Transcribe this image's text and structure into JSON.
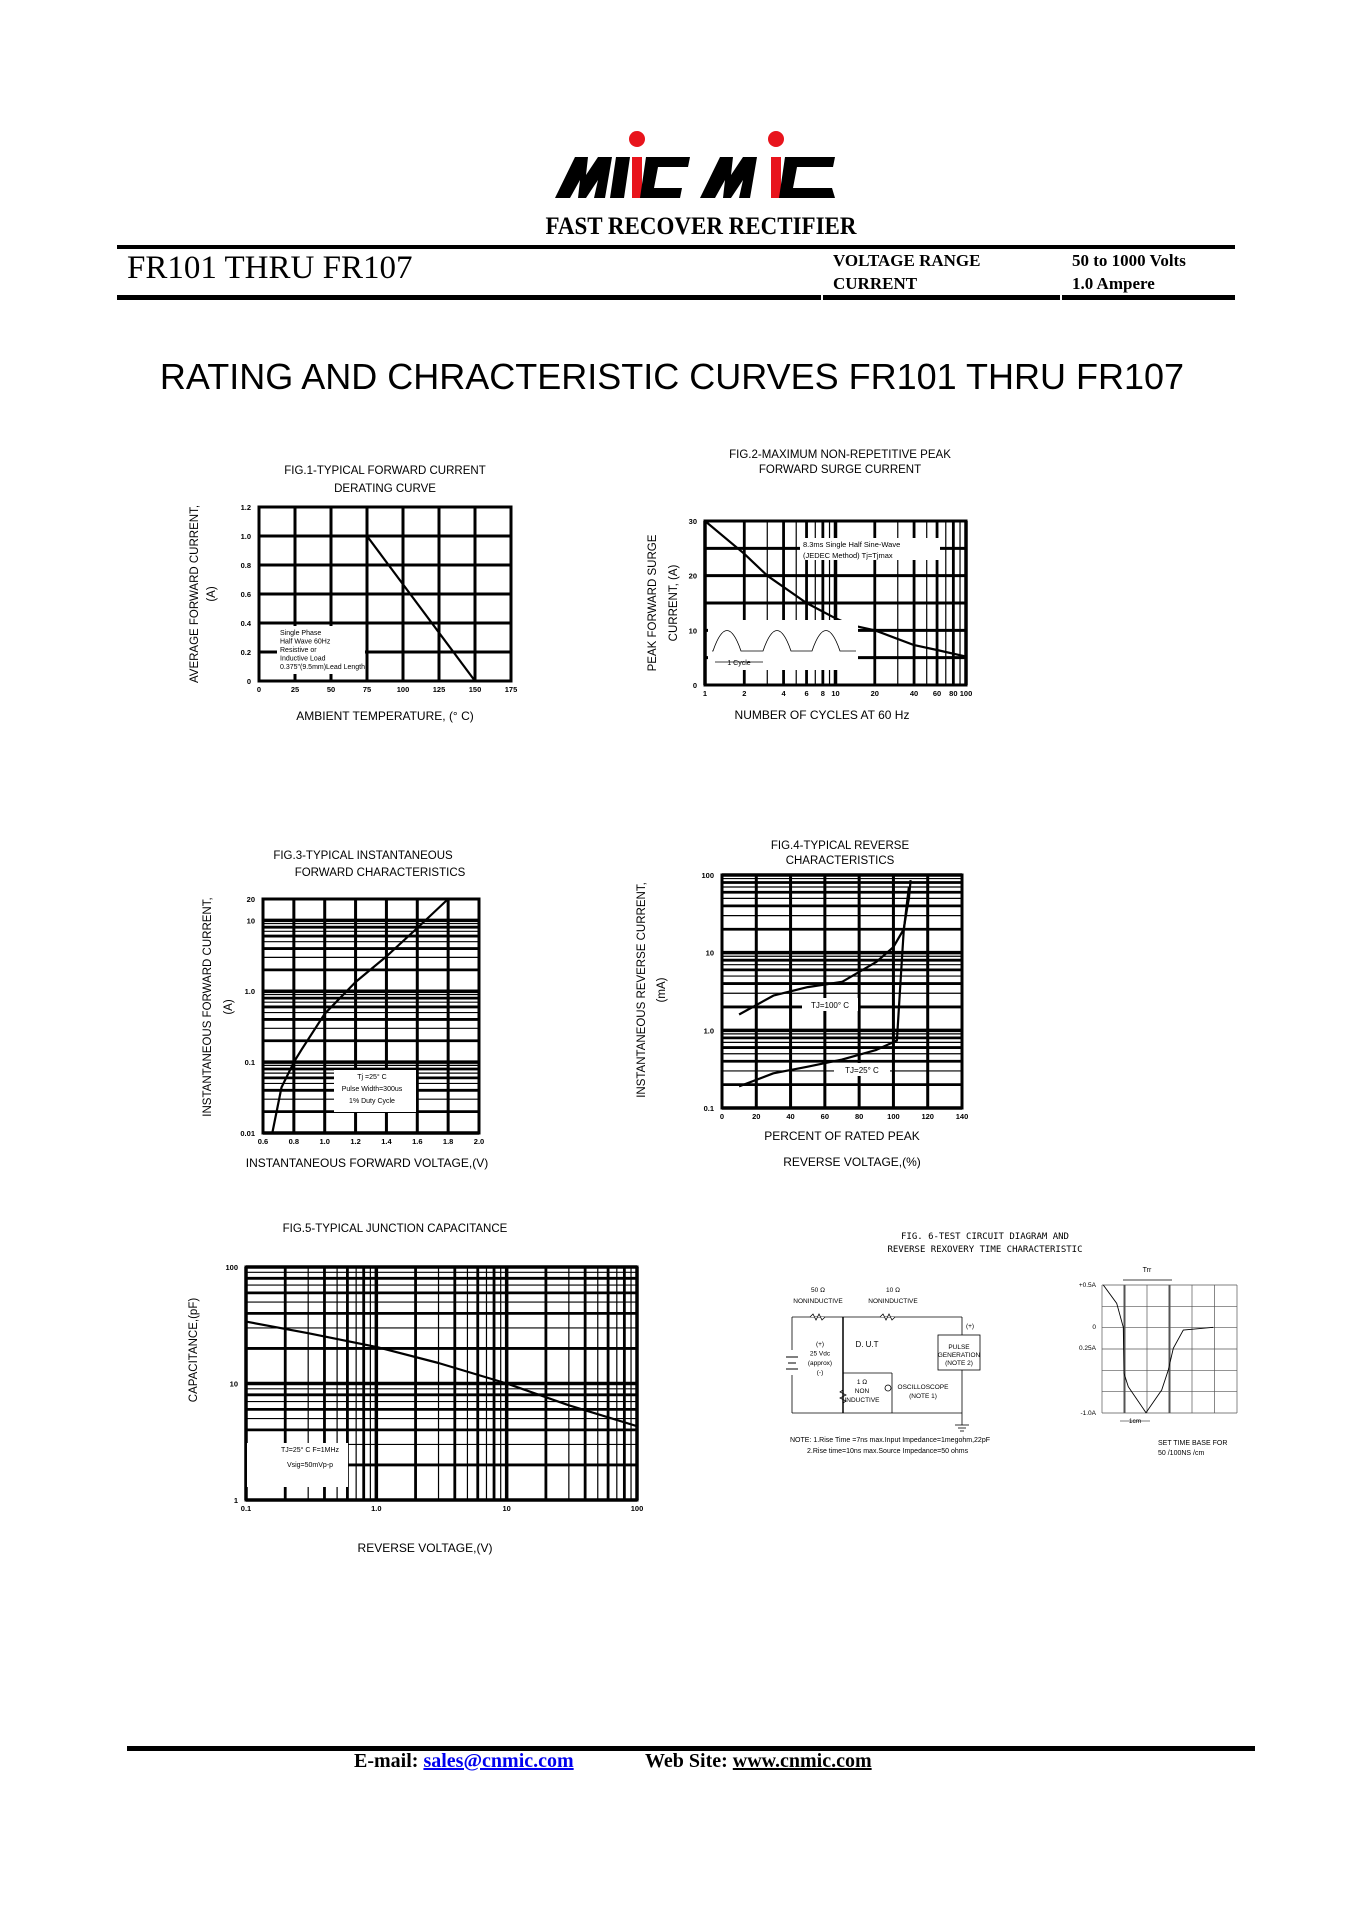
{
  "logo": {
    "text": "MIC MIC",
    "dot_color": "#e8141c"
  },
  "header": {
    "subtitle": "FAST RECOVER RECTIFIER",
    "part_range": "FR101 THRU FR107",
    "specs": [
      {
        "label": "VOLTAGE RANGE",
        "value": "50 to 1000 Volts"
      },
      {
        "label": "CURRENT",
        "value": "1.0 Ampere"
      }
    ]
  },
  "heading": "RATING AND CHRACTERISTIC CURVES FR101 THRU FR107",
  "chart_data": [
    {
      "type": "line",
      "title": [
        "FIG.1-TYPICAL FORWARD CURRENT",
        "DERATING CURVE"
      ],
      "xlabel": [
        "AMBIENT TEMPERATURE, (° C)"
      ],
      "ylabel": [
        "AVERAGE FORWARD CURRENT,",
        "(A)"
      ],
      "xscale": "linear",
      "yscale": "linear",
      "xlim": [
        0,
        175
      ],
      "ylim": [
        0,
        1.2
      ],
      "xtick_values": [
        0,
        25,
        50,
        75,
        100,
        125,
        150,
        175
      ],
      "xtick_labels": [
        "0",
        "25",
        "50",
        "75",
        "100",
        "125",
        "150",
        "175"
      ],
      "ytick_values": [
        0,
        0.2,
        0.4,
        0.6,
        0.8,
        1.0,
        1.2
      ],
      "ytick_labels": [
        "0",
        "0.2",
        "0.4",
        "0.6",
        "0.8",
        "1.0",
        "1.2"
      ],
      "grid": true,
      "series": [
        {
          "points": [
            [
              75,
              1.0
            ],
            [
              150,
              0
            ]
          ]
        }
      ],
      "annotation": [
        "Single Phase",
        "Half Wave 60Hz",
        "Resistive or",
        "Inductive Load",
        "0.375\"(9.5mm)Lead Length"
      ]
    },
    {
      "type": "line",
      "title": [
        "FIG.2-MAXIMUM NON-REPETITIVE PEAK",
        "FORWARD SURGE CURRENT"
      ],
      "xlabel": [
        "NUMBER OF CYCLES AT 60 Hz"
      ],
      "ylabel": [
        "PEAK FORWARD SURGE",
        "CURRENT, (A)"
      ],
      "xscale": "log",
      "yscale": "linear",
      "xlim": [
        1,
        100
      ],
      "ylim": [
        0,
        30
      ],
      "xtick_values": [
        1,
        2,
        4,
        6,
        8,
        10,
        20,
        40,
        60,
        80,
        100
      ],
      "xtick_labels": [
        "1",
        "2",
        "4",
        "6",
        "8",
        "10",
        "20",
        "40",
        "60",
        "80",
        "100"
      ],
      "ytick_values": [
        0,
        10,
        20,
        30
      ],
      "ytick_labels": [
        "0",
        "10",
        "20",
        "30"
      ],
      "grid": true,
      "series": [
        {
          "points": [
            [
              1,
              30
            ],
            [
              2,
              24
            ],
            [
              3,
              20
            ],
            [
              6,
              15
            ],
            [
              10,
              12.2
            ],
            [
              13,
              11
            ],
            [
              20,
              10
            ],
            [
              40,
              7.3
            ],
            [
              60,
              6.4
            ],
            [
              100,
              5.2
            ]
          ]
        }
      ],
      "annotation": [
        "8.3ms Single Half Sine-Wave",
        "(JEDEC Method)  Tj=Tjmax"
      ],
      "inset_label": "1 Cycle"
    },
    {
      "type": "line",
      "title": [
        "FIG.3-TYPICAL INSTANTANEOUS",
        "FORWARD CHARACTERISTICS"
      ],
      "xlabel": [
        "INSTANTANEOUS FORWARD VOLTAGE,(V)"
      ],
      "ylabel": [
        "INSTANTANEOUS FORWARD CURRENT,",
        "(A)"
      ],
      "xscale": "linear",
      "yscale": "log",
      "xlim": [
        0.6,
        2.0
      ],
      "ylim": [
        0.01,
        20
      ],
      "xtick_values": [
        0.6,
        0.8,
        1.0,
        1.2,
        1.4,
        1.6,
        1.8,
        2.0
      ],
      "xtick_labels": [
        "0.6",
        "0.8",
        "1.0",
        "1.2",
        "1.4",
        "1.6",
        "1.8",
        "2.0"
      ],
      "ytick_values": [
        0.01,
        0.1,
        1.0,
        10,
        20
      ],
      "ytick_labels": [
        "0.01",
        "0.1",
        "1.0",
        "10",
        "20"
      ],
      "grid": true,
      "series": [
        {
          "points": [
            [
              0.66,
              0.01
            ],
            [
              0.72,
              0.044
            ],
            [
              0.8,
              0.1
            ],
            [
              0.85,
              0.15
            ],
            [
              1.0,
              0.48
            ],
            [
              1.2,
              1.35
            ],
            [
              1.4,
              3.1
            ],
            [
              1.6,
              7.8
            ],
            [
              1.8,
              20
            ]
          ]
        }
      ],
      "annotation": [
        "Tj =25° C",
        "Pulse Width=300us",
        "1% Duty Cycle"
      ]
    },
    {
      "type": "line",
      "title": [
        "FIG.4-TYPICAL REVERSE",
        "CHARACTERISTICS"
      ],
      "xlabel": [
        "PERCENT OF RATED PEAK",
        "REVERSE VOLTAGE,(%)"
      ],
      "ylabel": [
        "INSTANTANEOUS REVERSE CURRENT,",
        "(mA)"
      ],
      "xscale": "linear",
      "yscale": "log",
      "xlim": [
        0,
        140
      ],
      "ylim": [
        0.1,
        100
      ],
      "xtick_values": [
        0,
        20,
        40,
        60,
        80,
        100,
        120,
        140
      ],
      "xtick_labels": [
        "0",
        "20",
        "40",
        "60",
        "80",
        "100",
        "120",
        "140"
      ],
      "ytick_values": [
        0.1,
        1.0,
        10,
        100
      ],
      "ytick_labels": [
        "0.1",
        "1.0",
        "10",
        "100"
      ],
      "grid": true,
      "series": [
        {
          "name": "TJ=100° C",
          "points": [
            [
              10,
              1.6
            ],
            [
              30,
              2.8
            ],
            [
              50,
              3.6
            ],
            [
              70,
              4.2
            ],
            [
              90,
              7.6
            ],
            [
              100,
              11.8
            ],
            [
              106,
              20
            ],
            [
              108,
              37
            ],
            [
              109,
              50
            ],
            [
              110,
              86
            ]
          ]
        },
        {
          "name": "TJ=25° C",
          "points": [
            [
              10,
              0.19
            ],
            [
              30,
              0.28
            ],
            [
              50,
              0.34
            ],
            [
              70,
              0.42
            ],
            [
              90,
              0.56
            ],
            [
              102,
              0.74
            ],
            [
              104,
              3.8
            ],
            [
              106,
              19
            ],
            [
              108,
              45
            ],
            [
              109,
              70
            ]
          ]
        }
      ]
    },
    {
      "type": "line",
      "title": [
        "FIG.5-TYPICAL JUNCTION CAPACITANCE"
      ],
      "xlabel": [
        "REVERSE VOLTAGE,(V)"
      ],
      "ylabel": [
        "CAPACITANCE,(pF)"
      ],
      "xscale": "log",
      "yscale": "log",
      "xlim": [
        0.1,
        100
      ],
      "ylim": [
        1,
        100
      ],
      "xtick_values": [
        0.1,
        1.0,
        10,
        100
      ],
      "xtick_labels": [
        "0.1",
        "1.0",
        "10",
        "100"
      ],
      "ytick_values": [
        1,
        10,
        100
      ],
      "ytick_labels": [
        "1",
        "10",
        "100"
      ],
      "grid": true,
      "series": [
        {
          "points": [
            [
              0.1,
              34
            ],
            [
              0.3,
              27
            ],
            [
              1,
              20.6
            ],
            [
              3,
              15
            ],
            [
              10,
              10
            ],
            [
              30,
              6.5
            ],
            [
              100,
              4.3
            ]
          ]
        }
      ],
      "annotation": [
        "TJ=25° C F=1MHz",
        "Vsig=50mVp-p"
      ]
    }
  ],
  "fig6": {
    "title": [
      "FIG. 6-TEST CIRCUIT DIAGRAM AND",
      "REVERSE REXOVERY TIME CHARACTERISTIC"
    ],
    "r1": [
      "50 Ω",
      "NONINDUCTIVE"
    ],
    "r2": [
      "10 Ω",
      "NONINDUCTIVE"
    ],
    "dut": "D. U.T",
    "source": [
      "(+)",
      "25 Vdc",
      "(approx)",
      "(-)"
    ],
    "pulse_polarity": "(+)",
    "pulse": [
      "PULSE",
      "GENERATION",
      "(NOTE 2)"
    ],
    "r3": [
      "1 Ω",
      "NON",
      "INDUCTIVE"
    ],
    "scope": [
      "OSCILLOSCOPE",
      "(NOTE 1)"
    ],
    "notes": [
      "NOTE: 1.Rise Time =7ns max.Input Impedance=1megohm,22pF",
      "2.Rise time=10ns max.Source Impedance=50 ohms"
    ],
    "wave_labels": [
      "+0.5A",
      "0",
      "0.25A",
      "-1.0A"
    ],
    "trr": "Trr",
    "cm": "1cm",
    "timebase": [
      "SET TIME BASE FOR",
      "50 /100NS /cm"
    ]
  },
  "footer": {
    "email_label": "E-mail:",
    "email": "sales@cnmic.com",
    "web_label": "Web Site:",
    "web": "www.cnmic.com"
  }
}
